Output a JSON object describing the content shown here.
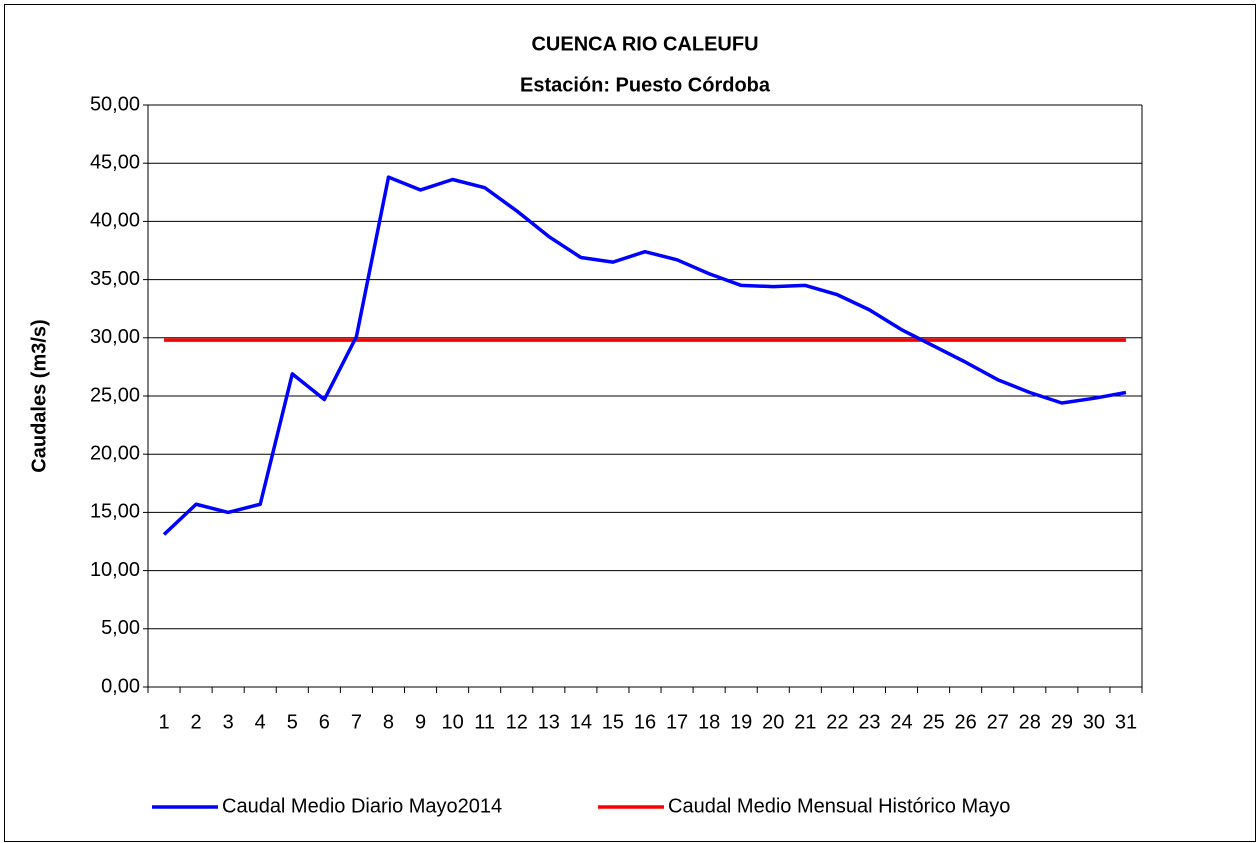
{
  "chart_data": {
    "type": "line",
    "title": "CUENCA RIO CALEUFU",
    "subtitle": "Estación: Puesto Córdoba",
    "y_label": "Caudales (m3/s)",
    "categories": [
      "1",
      "2",
      "3",
      "4",
      "5",
      "6",
      "7",
      "8",
      "9",
      "10",
      "11",
      "12",
      "13",
      "14",
      "15",
      "16",
      "17",
      "18",
      "19",
      "20",
      "21",
      "22",
      "23",
      "24",
      "25",
      "26",
      "27",
      "28",
      "29",
      "30",
      "31"
    ],
    "series": [
      {
        "name": "Caudal Medio Diario Mayo2014",
        "color": "#0000ff",
        "values": [
          13.1,
          15.7,
          15.0,
          15.7,
          26.9,
          24.7,
          30.1,
          43.8,
          42.7,
          43.6,
          42.9,
          40.9,
          38.7,
          36.9,
          36.5,
          37.4,
          36.7,
          35.5,
          34.5,
          34.4,
          34.5,
          33.7,
          32.4,
          30.7,
          29.3,
          27.9,
          26.4,
          25.3,
          24.4,
          24.8,
          25.3
        ]
      },
      {
        "name": "Caudal Medio Mensual Histórico Mayo",
        "color": "#ff0000",
        "values": [
          29.8,
          29.8,
          29.8,
          29.8,
          29.8,
          29.8,
          29.8,
          29.8,
          29.8,
          29.8,
          29.8,
          29.8,
          29.8,
          29.8,
          29.8,
          29.8,
          29.8,
          29.8,
          29.8,
          29.8,
          29.8,
          29.8,
          29.8,
          29.8,
          29.8,
          29.8,
          29.8,
          29.8,
          29.8,
          29.8,
          29.8
        ]
      }
    ],
    "ylim": [
      0,
      50
    ],
    "yticks": [
      {
        "value": 0,
        "label": "0,00"
      },
      {
        "value": 5,
        "label": "5,00"
      },
      {
        "value": 10,
        "label": "10,00"
      },
      {
        "value": 15,
        "label": "15,00"
      },
      {
        "value": 20,
        "label": "20,00"
      },
      {
        "value": 25,
        "label": "25,00"
      },
      {
        "value": 30,
        "label": "30,00"
      },
      {
        "value": 35,
        "label": "35,00"
      },
      {
        "value": 40,
        "label": "40,00"
      },
      {
        "value": 45,
        "label": "45,00"
      },
      {
        "value": 50,
        "label": "50,00"
      }
    ],
    "grid": true,
    "legend": "bottom"
  }
}
